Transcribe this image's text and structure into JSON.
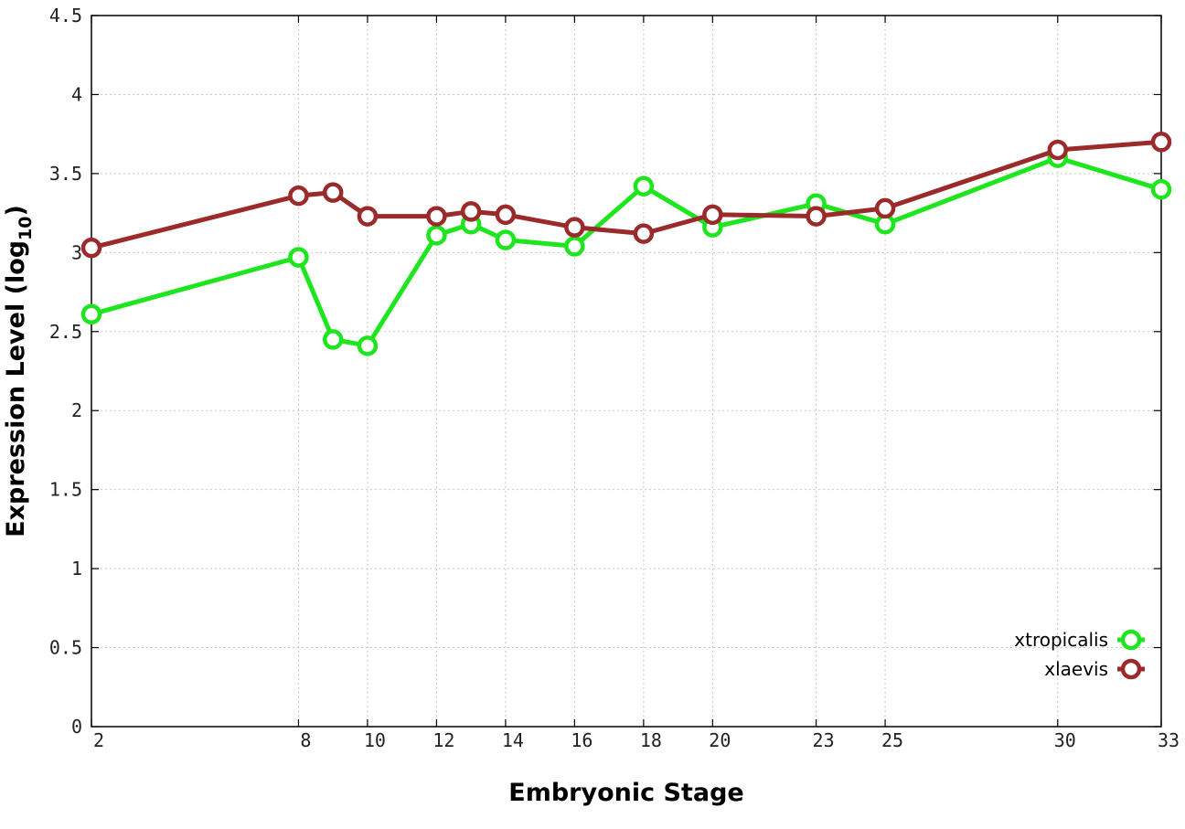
{
  "chart_data": {
    "type": "line",
    "title": "",
    "xlabel": "Embryonic Stage",
    "ylabel_main": "Expression Level (log",
    "ylabel_sub": "10",
    "ylabel_close": ")",
    "ylim": [
      0,
      4.5
    ],
    "yticks": [
      0,
      0.5,
      1,
      1.5,
      2,
      2.5,
      3,
      3.5,
      4,
      4.5
    ],
    "ytick_labels": [
      "0",
      "0.5",
      "1",
      "1.5",
      "2",
      "2.5",
      "3",
      "3.5",
      "4",
      "4.5"
    ],
    "categories": [
      "2",
      "8",
      "9",
      "10",
      "12",
      "13",
      "14",
      "16",
      "18",
      "20",
      "23",
      "25",
      "30",
      "33"
    ],
    "xticks": [
      "2",
      "8",
      "10",
      "12",
      "14",
      "16",
      "18",
      "20",
      "23",
      "25",
      "30",
      "33"
    ],
    "grid": true,
    "legend_position": "bottom-right",
    "series": [
      {
        "name": "xtropicalis",
        "color": "#1ee61e",
        "values": [
          2.61,
          2.97,
          2.45,
          2.41,
          3.11,
          3.18,
          3.08,
          3.04,
          3.42,
          3.16,
          3.31,
          3.18,
          3.6,
          3.4
        ]
      },
      {
        "name": "xlaevis",
        "color": "#9b2b2b",
        "values": [
          3.03,
          3.36,
          3.38,
          3.23,
          3.23,
          3.26,
          3.24,
          3.16,
          3.12,
          3.24,
          3.23,
          3.28,
          3.65,
          3.7
        ]
      }
    ]
  }
}
